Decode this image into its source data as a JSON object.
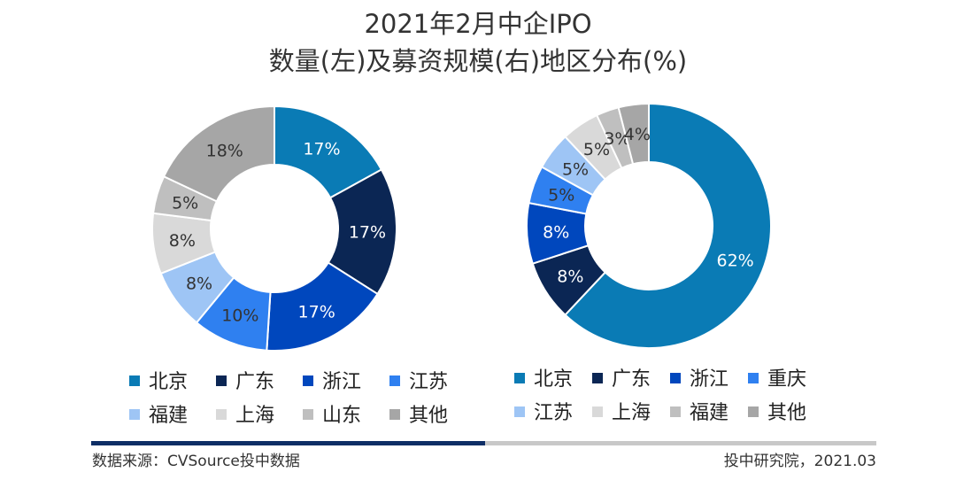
{
  "title": {
    "line1": "2021年2月中企IPO",
    "line2": "数量(左)及募资规模(右)地区分布(%)"
  },
  "chart_data": [
    {
      "type": "pie",
      "name": "数量",
      "categories": [
        "北京",
        "广东",
        "浙江",
        "江苏",
        "福建",
        "上海",
        "山东",
        "其他"
      ],
      "values": [
        17,
        17,
        17,
        10,
        8,
        8,
        5,
        18
      ],
      "labels": [
        "17%",
        "17%",
        "17%",
        "10%",
        "8%",
        "8%",
        "5%",
        "18%"
      ],
      "colors": [
        "#0a7bb5",
        "#0b2654",
        "#0047bd",
        "#2f80f0",
        "#9ec5f5",
        "#d9d9d9",
        "#bfbfbf",
        "#a6a6a6"
      ],
      "label_colors": [
        "#ffffff",
        "#ffffff",
        "#ffffff",
        "#333333",
        "#333333",
        "#333333",
        "#333333",
        "#333333"
      ],
      "legend": [
        "北京",
        "广东",
        "浙江",
        "江苏",
        "福建",
        "上海",
        "山东",
        "其他"
      ]
    },
    {
      "type": "pie",
      "name": "募资规模",
      "categories": [
        "北京",
        "广东",
        "浙江",
        "重庆",
        "江苏",
        "上海",
        "福建",
        "其他"
      ],
      "values": [
        62,
        8,
        8,
        5,
        5,
        5,
        3,
        4
      ],
      "labels": [
        "62%",
        "8%",
        "8%",
        "5%",
        "5%",
        "5%",
        "3%",
        "4%"
      ],
      "colors": [
        "#0a7bb5",
        "#0b2654",
        "#0047bd",
        "#2f80f0",
        "#9ec5f5",
        "#d9d9d9",
        "#bfbfbf",
        "#a6a6a6"
      ],
      "label_colors": [
        "#ffffff",
        "#ffffff",
        "#ffffff",
        "#333333",
        "#333333",
        "#333333",
        "#333333",
        "#333333"
      ],
      "legend": [
        "北京",
        "广东",
        "浙江",
        "重庆",
        "江苏",
        "上海",
        "福建",
        "其他"
      ]
    }
  ],
  "footer": {
    "source": "数据来源：CVSource投中数据",
    "credit": "投中研究院，2021.03"
  }
}
